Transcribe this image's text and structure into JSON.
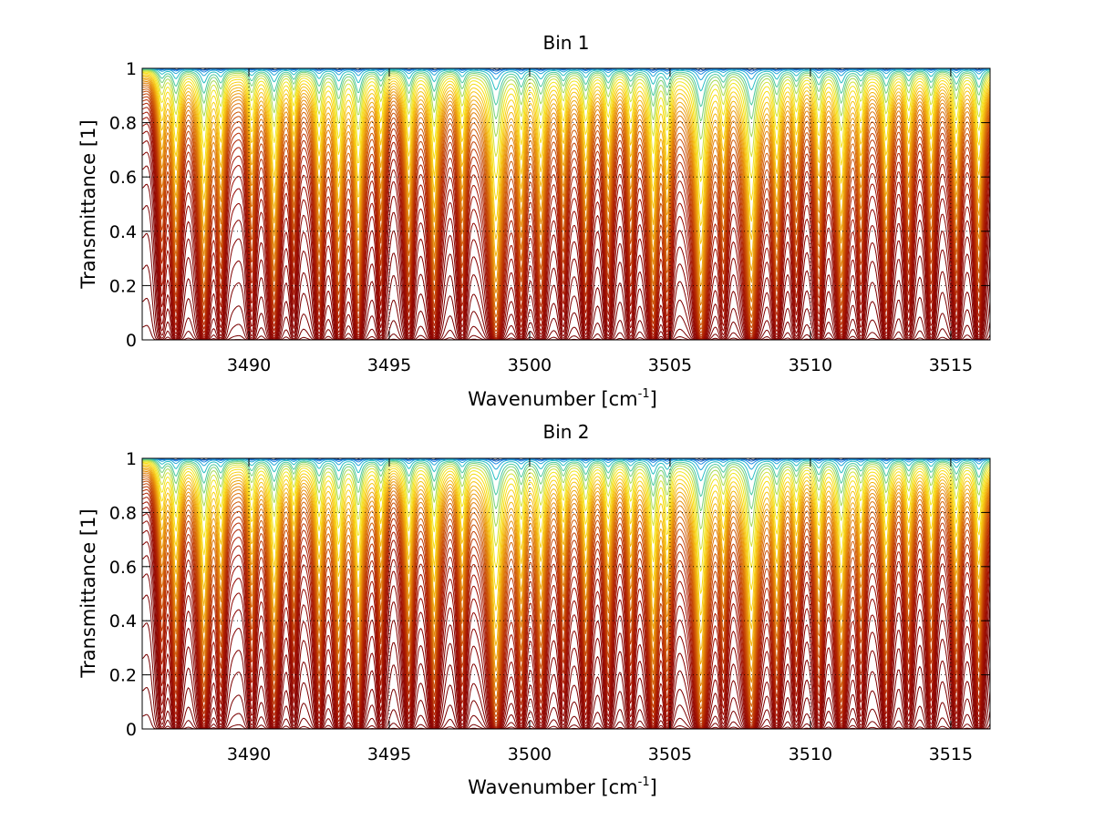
{
  "chart_data": [
    {
      "type": "line",
      "title": "Bin 1",
      "xlabel": "Wavenumber [cm",
      "xlabel_sup": "-1",
      "xlabel_end": "]",
      "ylabel": "Transmittance [1]",
      "xlim": [
        3486.2,
        3516.4
      ],
      "ylim": [
        0,
        1
      ],
      "xticks": [
        3490,
        3495,
        3500,
        3505,
        3510,
        3515
      ],
      "yticks": [
        0,
        0.2,
        0.4,
        0.6,
        0.8,
        1
      ],
      "grid": true,
      "line_dips": [
        {
          "x": 3486.9,
          "s": 0.45,
          "w": 0.12
        },
        {
          "x": 3487.4,
          "s": 0.9,
          "w": 0.12
        },
        {
          "x": 3488.4,
          "s": 1.3,
          "w": 0.13
        },
        {
          "x": 3489.0,
          "s": 0.7,
          "w": 0.12
        },
        {
          "x": 3490.1,
          "s": 0.6,
          "w": 0.12
        },
        {
          "x": 3490.9,
          "s": 1.2,
          "w": 0.13
        },
        {
          "x": 3491.6,
          "s": 0.5,
          "w": 0.1
        },
        {
          "x": 3492.5,
          "s": 0.9,
          "w": 0.12
        },
        {
          "x": 3493.2,
          "s": 1.1,
          "w": 0.12
        },
        {
          "x": 3493.9,
          "s": 1.3,
          "w": 0.12
        },
        {
          "x": 3494.7,
          "s": 0.6,
          "w": 0.11
        },
        {
          "x": 3495.7,
          "s": 0.9,
          "w": 0.12
        },
        {
          "x": 3496.6,
          "s": 1.2,
          "w": 0.12
        },
        {
          "x": 3497.6,
          "s": 0.7,
          "w": 0.12
        },
        {
          "x": 3498.8,
          "s": 2.0,
          "w": 0.16
        },
        {
          "x": 3499.7,
          "s": 0.9,
          "w": 0.12
        },
        {
          "x": 3500.4,
          "s": 0.9,
          "w": 0.14
        },
        {
          "x": 3501.2,
          "s": 0.6,
          "w": 0.12
        },
        {
          "x": 3502.0,
          "s": 0.8,
          "w": 0.12
        },
        {
          "x": 3502.8,
          "s": 0.7,
          "w": 0.12
        },
        {
          "x": 3503.6,
          "s": 0.6,
          "w": 0.12
        },
        {
          "x": 3504.4,
          "s": 1.4,
          "w": 0.12
        },
        {
          "x": 3504.9,
          "s": 0.9,
          "w": 0.11
        },
        {
          "x": 3506.1,
          "s": 2.1,
          "w": 0.15
        },
        {
          "x": 3506.9,
          "s": 0.6,
          "w": 0.12
        },
        {
          "x": 3507.9,
          "s": 2.0,
          "w": 0.15
        },
        {
          "x": 3508.8,
          "s": 0.9,
          "w": 0.12
        },
        {
          "x": 3509.5,
          "s": 0.6,
          "w": 0.12
        },
        {
          "x": 3510.3,
          "s": 0.8,
          "w": 0.12
        },
        {
          "x": 3511.1,
          "s": 1.3,
          "w": 0.13
        },
        {
          "x": 3511.8,
          "s": 0.6,
          "w": 0.12
        },
        {
          "x": 3512.7,
          "s": 0.9,
          "w": 0.12
        },
        {
          "x": 3513.5,
          "s": 0.6,
          "w": 0.12
        },
        {
          "x": 3514.3,
          "s": 0.7,
          "w": 0.12
        },
        {
          "x": 3515.2,
          "s": 0.8,
          "w": 0.12
        },
        {
          "x": 3516.0,
          "s": 1.0,
          "w": 0.12
        }
      ],
      "continuum": [
        0.0,
        0.005,
        0.01,
        0.02,
        0.04,
        0.07,
        0.1,
        0.14,
        0.19,
        0.25,
        0.32,
        0.4,
        0.48,
        0.57,
        0.66,
        0.75,
        0.85,
        0.95,
        1.07,
        1.2,
        1.35,
        1.5,
        1.68,
        1.88,
        2.1,
        2.35,
        2.65,
        3.0,
        3.4,
        3.9,
        4.5,
        5.3,
        6.3,
        7.6,
        9.5,
        12,
        16,
        22,
        32,
        50
      ],
      "colors": [
        "#0a3d91",
        "#1565c0",
        "#1e88e5",
        "#26a6d9",
        "#2bbfc4",
        "#4dc9a0",
        "#7bd27a",
        "#a8da55",
        "#d4e23a",
        "#f2e51e",
        "#f7dd14",
        "#f8d012",
        "#f5c310",
        "#f2b50f",
        "#eea70e",
        "#ea9a0d",
        "#e58d0c",
        "#e0800b",
        "#db730a",
        "#d56709",
        "#cf5b08",
        "#c94f07",
        "#c34406",
        "#bd3905",
        "#b72f04",
        "#b12604",
        "#ab1e03",
        "#a51703",
        "#9f1102",
        "#990c02",
        "#930802",
        "#8d0501",
        "#880301",
        "#840201",
        "#800101",
        "#7d0101",
        "#7b0000",
        "#790000",
        "#770000",
        "#750000"
      ]
    },
    {
      "type": "line",
      "title": "Bin 2",
      "xlabel": "Wavenumber [cm",
      "xlabel_sup": "-1",
      "xlabel_end": "]",
      "ylabel": "Transmittance [1]",
      "xlim": [
        3486.2,
        3516.4
      ],
      "ylim": [
        0,
        1
      ],
      "xticks": [
        3490,
        3495,
        3500,
        3505,
        3510,
        3515
      ],
      "yticks": [
        0,
        0.2,
        0.4,
        0.6,
        0.8,
        1
      ],
      "grid": true,
      "line_dips": [
        {
          "x": 3486.9,
          "s": 0.45,
          "w": 0.12
        },
        {
          "x": 3487.4,
          "s": 0.9,
          "w": 0.12
        },
        {
          "x": 3488.4,
          "s": 1.3,
          "w": 0.13
        },
        {
          "x": 3489.0,
          "s": 0.7,
          "w": 0.12
        },
        {
          "x": 3490.1,
          "s": 0.6,
          "w": 0.12
        },
        {
          "x": 3490.9,
          "s": 1.2,
          "w": 0.13
        },
        {
          "x": 3491.6,
          "s": 0.5,
          "w": 0.1
        },
        {
          "x": 3492.5,
          "s": 0.9,
          "w": 0.12
        },
        {
          "x": 3493.2,
          "s": 1.1,
          "w": 0.12
        },
        {
          "x": 3493.9,
          "s": 1.3,
          "w": 0.12
        },
        {
          "x": 3494.7,
          "s": 0.6,
          "w": 0.11
        },
        {
          "x": 3495.7,
          "s": 0.9,
          "w": 0.12
        },
        {
          "x": 3496.6,
          "s": 1.2,
          "w": 0.12
        },
        {
          "x": 3497.6,
          "s": 0.7,
          "w": 0.12
        },
        {
          "x": 3498.8,
          "s": 2.0,
          "w": 0.16
        },
        {
          "x": 3499.7,
          "s": 0.9,
          "w": 0.12
        },
        {
          "x": 3500.4,
          "s": 0.9,
          "w": 0.14
        },
        {
          "x": 3501.2,
          "s": 0.6,
          "w": 0.12
        },
        {
          "x": 3502.0,
          "s": 0.8,
          "w": 0.12
        },
        {
          "x": 3502.8,
          "s": 0.7,
          "w": 0.12
        },
        {
          "x": 3503.6,
          "s": 0.6,
          "w": 0.12
        },
        {
          "x": 3504.4,
          "s": 1.4,
          "w": 0.12
        },
        {
          "x": 3504.9,
          "s": 0.9,
          "w": 0.11
        },
        {
          "x": 3506.1,
          "s": 2.1,
          "w": 0.15
        },
        {
          "x": 3506.9,
          "s": 0.6,
          "w": 0.12
        },
        {
          "x": 3507.9,
          "s": 2.0,
          "w": 0.15
        },
        {
          "x": 3508.8,
          "s": 0.9,
          "w": 0.12
        },
        {
          "x": 3509.5,
          "s": 0.6,
          "w": 0.12
        },
        {
          "x": 3510.3,
          "s": 0.8,
          "w": 0.12
        },
        {
          "x": 3511.1,
          "s": 1.3,
          "w": 0.13
        },
        {
          "x": 3511.8,
          "s": 0.6,
          "w": 0.12
        },
        {
          "x": 3512.7,
          "s": 0.9,
          "w": 0.12
        },
        {
          "x": 3513.5,
          "s": 0.6,
          "w": 0.12
        },
        {
          "x": 3514.3,
          "s": 0.7,
          "w": 0.12
        },
        {
          "x": 3515.2,
          "s": 0.8,
          "w": 0.12
        },
        {
          "x": 3516.0,
          "s": 1.0,
          "w": 0.12
        }
      ],
      "continuum": [
        0.0,
        0.005,
        0.01,
        0.02,
        0.04,
        0.07,
        0.1,
        0.14,
        0.19,
        0.25,
        0.32,
        0.4,
        0.48,
        0.57,
        0.66,
        0.75,
        0.85,
        0.95,
        1.07,
        1.2,
        1.35,
        1.5,
        1.68,
        1.88,
        2.1,
        2.35,
        2.65,
        3.0,
        3.4,
        3.9,
        4.5,
        5.3,
        6.3,
        7.6,
        9.5,
        12,
        16,
        22,
        32,
        50
      ],
      "colors": [
        "#0a3d91",
        "#1565c0",
        "#1e88e5",
        "#26a6d9",
        "#2bbfc4",
        "#4dc9a0",
        "#7bd27a",
        "#a8da55",
        "#d4e23a",
        "#f2e51e",
        "#f7dd14",
        "#f8d012",
        "#f5c310",
        "#f2b50f",
        "#eea70e",
        "#ea9a0d",
        "#e58d0c",
        "#e0800b",
        "#db730a",
        "#d56709",
        "#cf5b08",
        "#c94f07",
        "#c34406",
        "#bd3905",
        "#b72f04",
        "#b12604",
        "#ab1e03",
        "#a51703",
        "#9f1102",
        "#990c02",
        "#930802",
        "#8d0501",
        "#880301",
        "#840201",
        "#800101",
        "#7d0101",
        "#7b0000",
        "#790000",
        "#770000",
        "#750000"
      ]
    }
  ]
}
